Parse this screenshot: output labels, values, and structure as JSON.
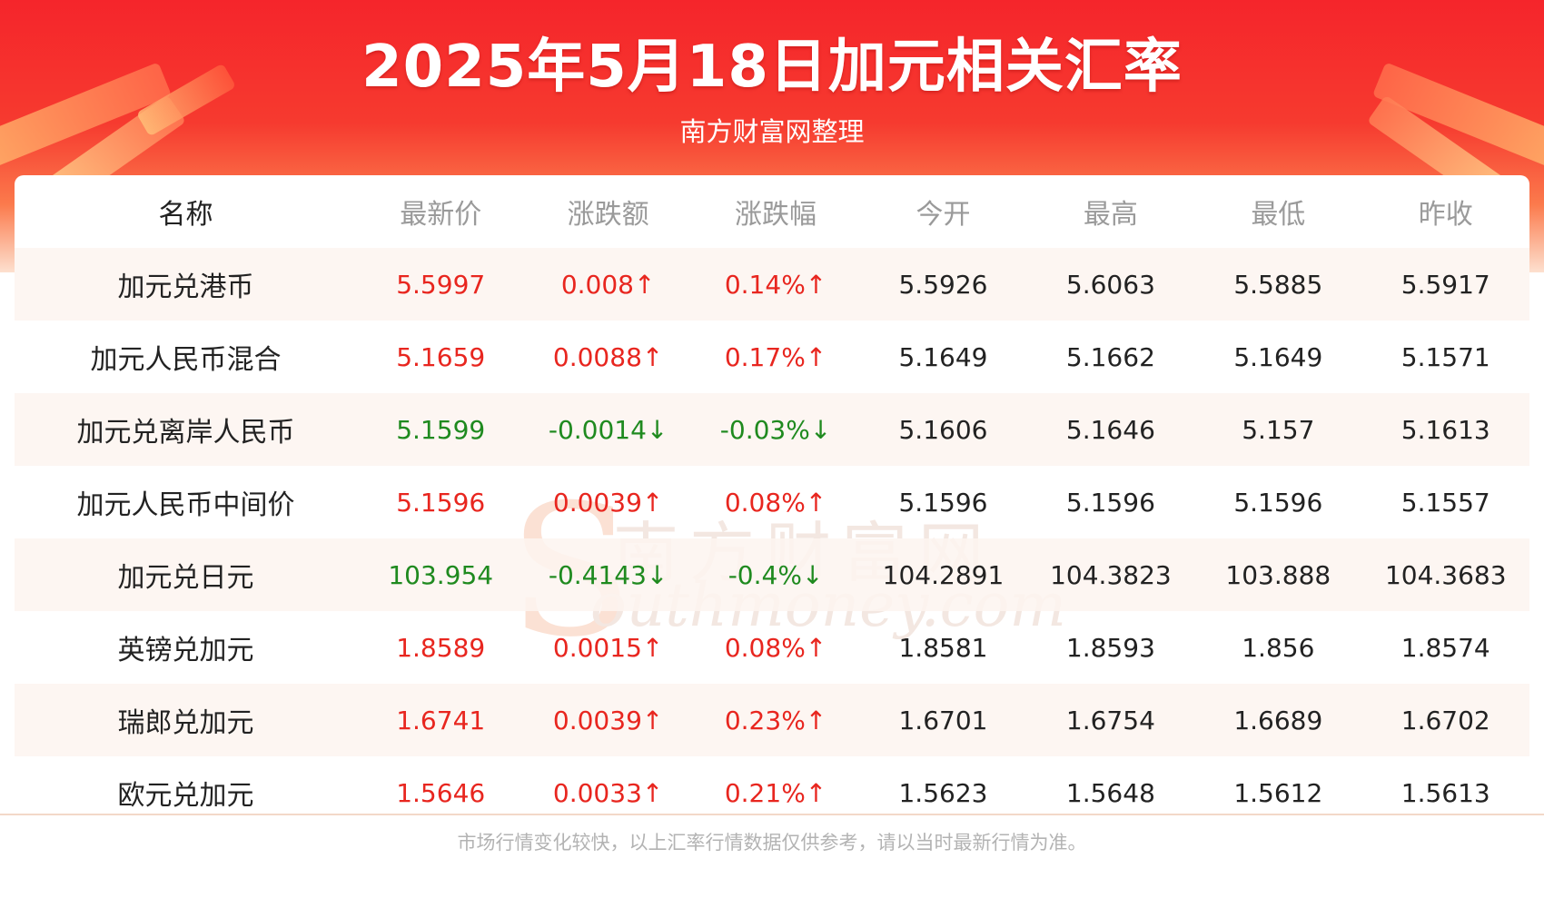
{
  "header": {
    "title": "2025年5月18日加元相关汇率",
    "subtitle": "南方财富网整理"
  },
  "watermark": {
    "logo_cn": "南方财富网",
    "logo_en": "outhmoney.com",
    "logo_letter": "S"
  },
  "colors": {
    "up": "#e8261f",
    "down": "#1f8a1f",
    "header_red": "#f5252b"
  },
  "table": {
    "columns": [
      "名称",
      "最新价",
      "涨跌额",
      "涨跌幅",
      "今开",
      "最高",
      "最低",
      "昨收"
    ],
    "rows": [
      {
        "name": "加元兑港币",
        "latest": "5.5997",
        "change": "0.008↑",
        "pct": "0.14%↑",
        "open": "5.5926",
        "high": "5.6063",
        "low": "5.5885",
        "prev": "5.5917",
        "trend": "up"
      },
      {
        "name": "加元人民币混合",
        "latest": "5.1659",
        "change": "0.0088↑",
        "pct": "0.17%↑",
        "open": "5.1649",
        "high": "5.1662",
        "low": "5.1649",
        "prev": "5.1571",
        "trend": "up"
      },
      {
        "name": "加元兑离岸人民币",
        "latest": "5.1599",
        "change": "-0.0014↓",
        "pct": "-0.03%↓",
        "open": "5.1606",
        "high": "5.1646",
        "low": "5.157",
        "prev": "5.1613",
        "trend": "down"
      },
      {
        "name": "加元人民币中间价",
        "latest": "5.1596",
        "change": "0.0039↑",
        "pct": "0.08%↑",
        "open": "5.1596",
        "high": "5.1596",
        "low": "5.1596",
        "prev": "5.1557",
        "trend": "up"
      },
      {
        "name": "加元兑日元",
        "latest": "103.954",
        "change": "-0.4143↓",
        "pct": "-0.4%↓",
        "open": "104.2891",
        "high": "104.3823",
        "low": "103.888",
        "prev": "104.3683",
        "trend": "down"
      },
      {
        "name": "英镑兑加元",
        "latest": "1.8589",
        "change": "0.0015↑",
        "pct": "0.08%↑",
        "open": "1.8581",
        "high": "1.8593",
        "low": "1.856",
        "prev": "1.8574",
        "trend": "up"
      },
      {
        "name": "瑞郎兑加元",
        "latest": "1.6741",
        "change": "0.0039↑",
        "pct": "0.23%↑",
        "open": "1.6701",
        "high": "1.6754",
        "low": "1.6689",
        "prev": "1.6702",
        "trend": "up"
      },
      {
        "name": "欧元兑加元",
        "latest": "1.5646",
        "change": "0.0033↑",
        "pct": "0.21%↑",
        "open": "1.5623",
        "high": "1.5648",
        "low": "1.5612",
        "prev": "1.5613",
        "trend": "up"
      }
    ]
  },
  "footer": {
    "note": "市场行情变化较快，以上汇率行情数据仅供参考，请以当时最新行情为准。"
  }
}
